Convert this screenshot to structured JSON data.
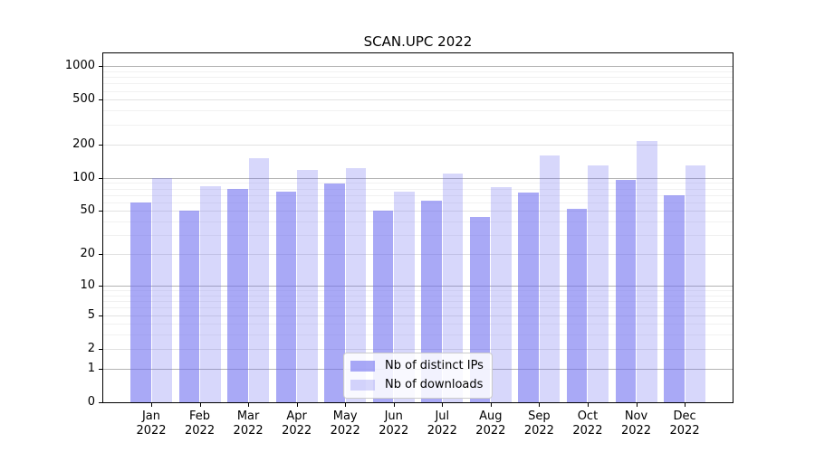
{
  "chart_data": {
    "type": "bar",
    "title": "SCAN.UPC 2022",
    "categories": [
      "Jan",
      "Feb",
      "Mar",
      "Apr",
      "May",
      "Jun",
      "Jul",
      "Aug",
      "Sep",
      "Oct",
      "Nov",
      "Dec"
    ],
    "category_year": "2022",
    "series": [
      {
        "name": "Nb of distinct IPs",
        "color": "rgba(106,106,240,0.58)",
        "values": [
          60,
          50,
          80,
          75,
          88,
          50,
          62,
          44,
          73,
          52,
          95,
          70
        ]
      },
      {
        "name": "Nb of downloads",
        "color": "rgba(106,106,240,0.27)",
        "values": [
          100,
          84,
          150,
          118,
          122,
          75,
          110,
          82,
          160,
          130,
          215,
          128
        ]
      }
    ],
    "xlabel": "",
    "ylabel": "",
    "yscale": "log1p",
    "ylim": [
      0,
      1300
    ],
    "yticks": [
      0,
      1,
      2,
      5,
      10,
      20,
      50,
      100,
      200,
      500,
      1000
    ],
    "minor_gridlines": [
      3,
      4,
      6,
      7,
      8,
      9,
      30,
      40,
      60,
      70,
      80,
      90,
      300,
      400,
      600,
      700,
      800,
      900
    ],
    "grid": true,
    "legend_position": "lower center"
  },
  "colors": {
    "major_grid": "#b3b3b3",
    "labeled_grid": "#e2e2e2",
    "minor_grid": "#f1f1f1",
    "spine": "#000000",
    "background": "#ffffff",
    "bar_base": "#6a6af0"
  }
}
